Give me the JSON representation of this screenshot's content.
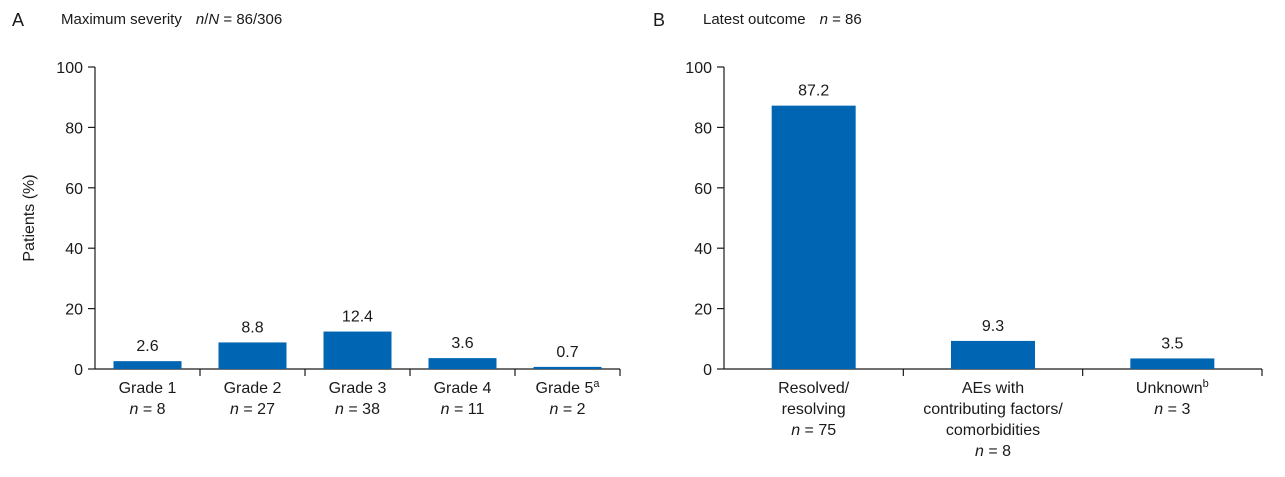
{
  "colors": {
    "bar": "#0066b3"
  },
  "chart_data": [
    {
      "type": "bar",
      "panel_letter": "A",
      "title": "Maximum severity",
      "title_extra": {
        "n_label": "n",
        "slash": "/",
        "N_label": "N",
        "eq": " = ",
        "value": "86/306"
      },
      "ylabel": "Patients (%)",
      "xlabel": "",
      "ylim": [
        0,
        100
      ],
      "yticks": [
        "0",
        "20",
        "40",
        "60",
        "80",
        "100"
      ],
      "grid": false,
      "categories": [
        {
          "name": "Grade 1",
          "sup": "",
          "n": "8"
        },
        {
          "name": "Grade 2",
          "sup": "",
          "n": "27"
        },
        {
          "name": "Grade 3",
          "sup": "",
          "n": "38"
        },
        {
          "name": "Grade 4",
          "sup": "",
          "n": "11"
        },
        {
          "name": "Grade 5",
          "sup": "a",
          "n": "2"
        }
      ],
      "values": [
        2.6,
        8.8,
        12.4,
        3.6,
        0.7
      ],
      "value_labels": [
        "2.6",
        "8.8",
        "12.4",
        "3.6",
        "0.7"
      ]
    },
    {
      "type": "bar",
      "panel_letter": "B",
      "title": "Latest outcome",
      "title_extra": {
        "n_label": "n",
        "eq": " = ",
        "value": "86"
      },
      "ylabel": "",
      "xlabel": "",
      "ylim": [
        0,
        100
      ],
      "yticks": [
        "0",
        "20",
        "40",
        "60",
        "80",
        "100"
      ],
      "grid": false,
      "categories": [
        {
          "lines": [
            "Resolved/",
            "resolving"
          ],
          "sup": "",
          "n": "75"
        },
        {
          "lines": [
            "AEs with",
            "contributing factors/",
            "comorbidities"
          ],
          "sup": "",
          "n": "8"
        },
        {
          "lines": [
            "Unknown"
          ],
          "sup": "b",
          "n": "3"
        }
      ],
      "values": [
        87.2,
        9.3,
        3.5
      ],
      "value_labels": [
        "87.2",
        "9.3",
        "3.5"
      ]
    }
  ]
}
